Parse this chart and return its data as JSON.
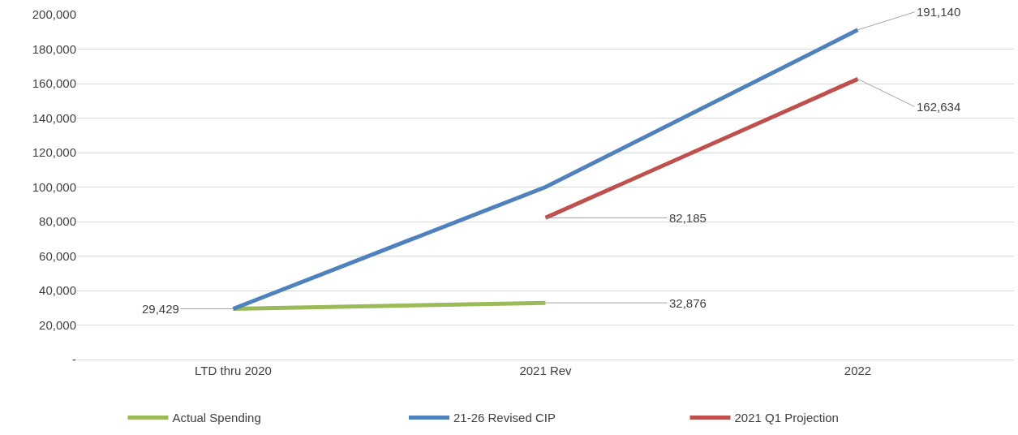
{
  "chart_data": {
    "type": "line",
    "categories": [
      "LTD thru 2020",
      "2021 Rev",
      "2022"
    ],
    "series": [
      {
        "name": "Actual Spending",
        "color": "#9bbb59",
        "values": [
          29429,
          32876,
          null
        ],
        "value_labels": [
          "29,429",
          "32,876",
          null
        ]
      },
      {
        "name": "21-26 Revised CIP",
        "color": "#4f81bd",
        "values": [
          29429,
          100000,
          191140
        ],
        "value_labels": [
          null,
          null,
          "191,140"
        ]
      },
      {
        "name": "2021 Q1 Projection",
        "color": "#c0504d",
        "values": [
          null,
          82185,
          162634
        ],
        "value_labels": [
          null,
          "82,185",
          "162,634"
        ]
      }
    ],
    "ylim": [
      0,
      200000
    ],
    "yticks": [
      {
        "value": 0,
        "label": "-"
      },
      {
        "value": 20000,
        "label": "20,000"
      },
      {
        "value": 40000,
        "label": "40,000"
      },
      {
        "value": 60000,
        "label": "60,000"
      },
      {
        "value": 80000,
        "label": "80,000"
      },
      {
        "value": 100000,
        "label": "100,000"
      },
      {
        "value": 120000,
        "label": "120,000"
      },
      {
        "value": 140000,
        "label": "140,000"
      },
      {
        "value": 160000,
        "label": "160,000"
      },
      {
        "value": 180000,
        "label": "180,000"
      },
      {
        "value": 200000,
        "label": "200,000"
      }
    ],
    "grid": "y",
    "legend": "bottom",
    "marker": "none",
    "line_style": "solid"
  }
}
